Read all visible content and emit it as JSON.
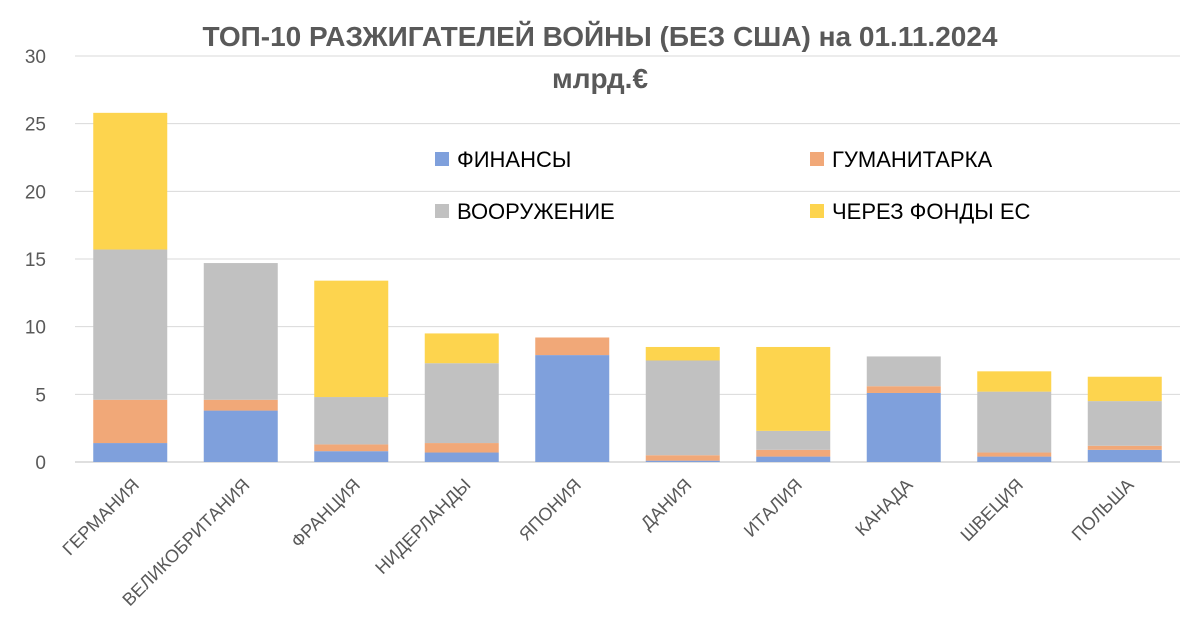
{
  "chart_data": {
    "type": "bar",
    "stacked": true,
    "title": "ТОП-10 РАЗЖИГАТЕЛЕЙ ВОЙНЫ (БЕЗ США) на 01.11.2024",
    "subtitle": "млрд.€",
    "categories": [
      "ГЕРМАНИЯ",
      "ВЕЛИКОБРИТАНИЯ",
      "ФРАНЦИЯ",
      "НИДЕРЛАНДЫ",
      "ЯПОНИЯ",
      "ДАНИЯ",
      "ИТАЛИЯ",
      "КАНАДА",
      "ШВЕЦИЯ",
      "ПОЛЬША"
    ],
    "series": [
      {
        "name": "ФИНАНСЫ",
        "color": "#7fa0dc",
        "values": [
          1.4,
          3.8,
          0.8,
          0.7,
          7.9,
          0.1,
          0.4,
          5.1,
          0.4,
          0.9
        ]
      },
      {
        "name": "ГУМАНИТАРКА",
        "color": "#f1a878",
        "values": [
          3.2,
          0.8,
          0.5,
          0.7,
          1.3,
          0.4,
          0.5,
          0.5,
          0.3,
          0.3
        ]
      },
      {
        "name": "ВООРУЖЕНИЕ",
        "color": "#c1c1c1",
        "values": [
          11.1,
          10.1,
          3.5,
          5.9,
          0.0,
          7.0,
          1.4,
          2.2,
          4.5,
          3.3
        ]
      },
      {
        "name": "ЧЕРЕЗ ФОНДЫ ЕС",
        "color": "#fdd44e",
        "values": [
          10.1,
          0.0,
          8.6,
          2.2,
          0.0,
          1.0,
          6.2,
          0.0,
          1.5,
          1.8
        ]
      }
    ],
    "ylim": [
      0,
      30
    ],
    "yticks": [
      0,
      5,
      10,
      15,
      20,
      25,
      30
    ],
    "grid": true,
    "legend_position": "top-right",
    "xlabel": "",
    "ylabel": ""
  }
}
